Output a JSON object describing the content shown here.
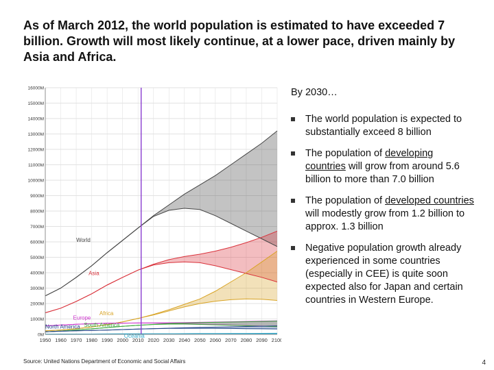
{
  "header": {
    "title": "As of March 2012, the world population is estimated to have exceeded 7 billion. Growth will most likely continue, at a lower pace, driven mainly by Asia and Africa."
  },
  "sidebar": {
    "intro": "By 2030…",
    "bullets": [
      {
        "before": "The world population is expected to substantially exceed 8 billion",
        "link": "",
        "after": ""
      },
      {
        "before": "The population of ",
        "link": "developing countries",
        "after": " will grow from around 5.6 billion to more than 7.0 billion"
      },
      {
        "before": "The population of ",
        "link": "developed countries",
        "after": " will modestly grow from 1.2 billion to approx. 1.3 billion"
      },
      {
        "before": "Negative population growth already experienced in some countries (especially in CEE) is quite soon expected also for Japan and certain countries in Western Europe.",
        "link": "",
        "after": ""
      }
    ]
  },
  "footer": {
    "source": "Source: United Nations Department of Economic and Social Affairs",
    "page_number": "4"
  },
  "chart_data": {
    "type": "area",
    "title": "",
    "xlabel": "",
    "ylabel": "",
    "xlim": [
      1950,
      2100
    ],
    "ylim": [
      0,
      16000
    ],
    "x_ticks": [
      "1950",
      "1960",
      "1970",
      "1980",
      "1990",
      "2000",
      "2010",
      "2020",
      "2030",
      "2040",
      "2050",
      "2060",
      "2070",
      "2080",
      "2090",
      "2100"
    ],
    "y_ticks": [
      {
        "value": 0,
        "label": "0M"
      },
      {
        "value": 1000,
        "label": "1000M"
      },
      {
        "value": 2000,
        "label": "2000M"
      },
      {
        "value": 3000,
        "label": "3000M"
      },
      {
        "value": 4000,
        "label": "4000M"
      },
      {
        "value": 5000,
        "label": "5000M"
      },
      {
        "value": 6000,
        "label": "6000M"
      },
      {
        "value": 7000,
        "label": "7000M"
      },
      {
        "value": 8000,
        "label": "8000M"
      },
      {
        "value": 9000,
        "label": "9000M"
      },
      {
        "value": 10000,
        "label": "10000M"
      },
      {
        "value": 11000,
        "label": "11000M"
      },
      {
        "value": 12000,
        "label": "12000M"
      },
      {
        "value": 13000,
        "label": "13000M"
      },
      {
        "value": 14000,
        "label": "14000M"
      },
      {
        "value": 15000,
        "label": "15000M"
      },
      {
        "value": 16000,
        "label": "16000M"
      }
    ],
    "marker_year": 2012,
    "marker_color": "#8a3ccf",
    "x": [
      1950,
      1960,
      1970,
      1980,
      1990,
      2000,
      2010,
      2020,
      2030,
      2040,
      2050,
      2060,
      2070,
      2080,
      2090,
      2100
    ],
    "series": [
      {
        "name": "World",
        "color": "#444444",
        "label_x": 1970,
        "label_y": 6000,
        "values": [
          2500,
          3000,
          3700,
          4450,
          5300,
          6100,
          6900,
          7700,
          8400,
          9100,
          9700,
          10300,
          11000,
          11700,
          12400,
          13200
        ],
        "low": [
          2500,
          3000,
          3700,
          4450,
          5300,
          6100,
          6900,
          7650,
          8050,
          8180,
          8100,
          7700,
          7200,
          6700,
          6200,
          5700
        ]
      },
      {
        "name": "Asia",
        "color": "#d9313a",
        "label_x": 1978,
        "label_y": 3850,
        "values": [
          1400,
          1700,
          2140,
          2630,
          3200,
          3700,
          4170,
          4550,
          4850,
          5050,
          5200,
          5400,
          5650,
          5950,
          6300,
          6700
        ],
        "low": [
          1400,
          1700,
          2140,
          2630,
          3200,
          3700,
          4170,
          4500,
          4650,
          4700,
          4650,
          4450,
          4200,
          3950,
          3700,
          3400
        ]
      },
      {
        "name": "Africa",
        "color": "#d8a324",
        "label_x": 1985,
        "label_y": 1250,
        "values": [
          230,
          285,
          365,
          480,
          630,
          810,
          1030,
          1300,
          1600,
          1950,
          2300,
          2800,
          3400,
          4000,
          4700,
          5400
        ],
        "low": [
          230,
          285,
          365,
          480,
          630,
          810,
          1030,
          1260,
          1520,
          1780,
          2000,
          2150,
          2250,
          2300,
          2280,
          2200
        ]
      },
      {
        "name": "Europe",
        "color": "#cc33cc",
        "label_x": 1968,
        "label_y": 950,
        "values": [
          550,
          605,
          657,
          694,
          721,
          730,
          740,
          745,
          750,
          760,
          780,
          800,
          820,
          840,
          860,
          880
        ],
        "low": [
          550,
          605,
          657,
          694,
          721,
          730,
          740,
          735,
          715,
          690,
          660,
          630,
          600,
          570,
          540,
          510
        ]
      },
      {
        "name": "South America",
        "color": "#3aa63a",
        "label_x": 1975,
        "label_y": 500,
        "values": [
          170,
          220,
          290,
          360,
          440,
          520,
          590,
          650,
          700,
          730,
          760,
          780,
          800,
          820,
          840,
          860
        ],
        "low": [
          170,
          220,
          290,
          360,
          440,
          520,
          590,
          640,
          665,
          665,
          645,
          620,
          590,
          560,
          530,
          500
        ]
      },
      {
        "name": "North America",
        "color": "#224488",
        "label_x": 1950,
        "label_y": 380,
        "values": [
          170,
          205,
          230,
          255,
          280,
          310,
          345,
          375,
          400,
          425,
          450,
          470,
          490,
          510,
          530,
          550
        ],
        "low": [
          170,
          205,
          230,
          255,
          280,
          310,
          345,
          370,
          385,
          395,
          395,
          390,
          380,
          370,
          360,
          350
        ]
      },
      {
        "name": "Oceania",
        "color": "#33aacc",
        "label_x": 2001,
        "label_y": -500,
        "values": [
          13,
          16,
          20,
          23,
          27,
          31,
          36,
          41,
          46,
          50,
          55,
          58,
          61,
          64,
          67,
          70
        ],
        "low": [
          13,
          16,
          20,
          23,
          27,
          31,
          36,
          40,
          44,
          46,
          47,
          47,
          46,
          45,
          44,
          43
        ]
      }
    ]
  }
}
